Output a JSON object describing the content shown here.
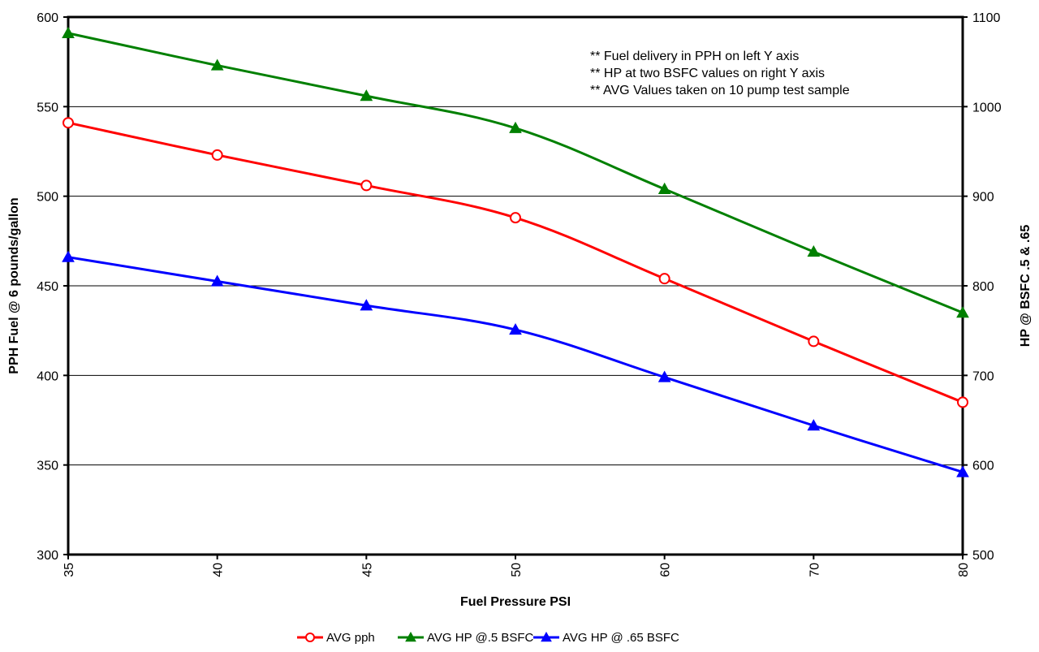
{
  "chart_data": {
    "type": "line",
    "title": "",
    "xlabel": "Fuel Pressure PSI",
    "ylabel": "PPH Fuel @ 6 pounds/gallon",
    "y2label": "HP @ BSFC .5 & .65",
    "x": [
      "35",
      "40",
      "45",
      "50",
      "60",
      "70",
      "80"
    ],
    "ylim": [
      300,
      600
    ],
    "yticks": [
      "300",
      "350",
      "400",
      "450",
      "500",
      "550",
      "600"
    ],
    "y2lim": [
      500,
      1100
    ],
    "y2ticks": [
      "500",
      "600",
      "700",
      "800",
      "900",
      "1000",
      "1100"
    ],
    "grid": true,
    "legend": "bottom",
    "notes": [
      "** Fuel delivery in PPH on left Y axis",
      "** HP at two BSFC values on right Y axis",
      "** AVG Values taken on 10 pump  test sample"
    ],
    "series": [
      {
        "name": "AVG pph",
        "axis": "left",
        "marker": "circle-open",
        "color": "#ff0000",
        "values": [
          541,
          523,
          506,
          488,
          454,
          419,
          385
        ]
      },
      {
        "name": "AVG HP @.5 BSFC",
        "axis": "right",
        "marker": "triangle",
        "color": "#008000",
        "values": [
          1082,
          1046,
          1012,
          976,
          908,
          838,
          770
        ]
      },
      {
        "name": "AVG HP @ .65 BSFC",
        "axis": "right",
        "marker": "triangle",
        "color": "#0000ff",
        "values": [
          832,
          805,
          778,
          751,
          698,
          644,
          592
        ]
      }
    ]
  }
}
